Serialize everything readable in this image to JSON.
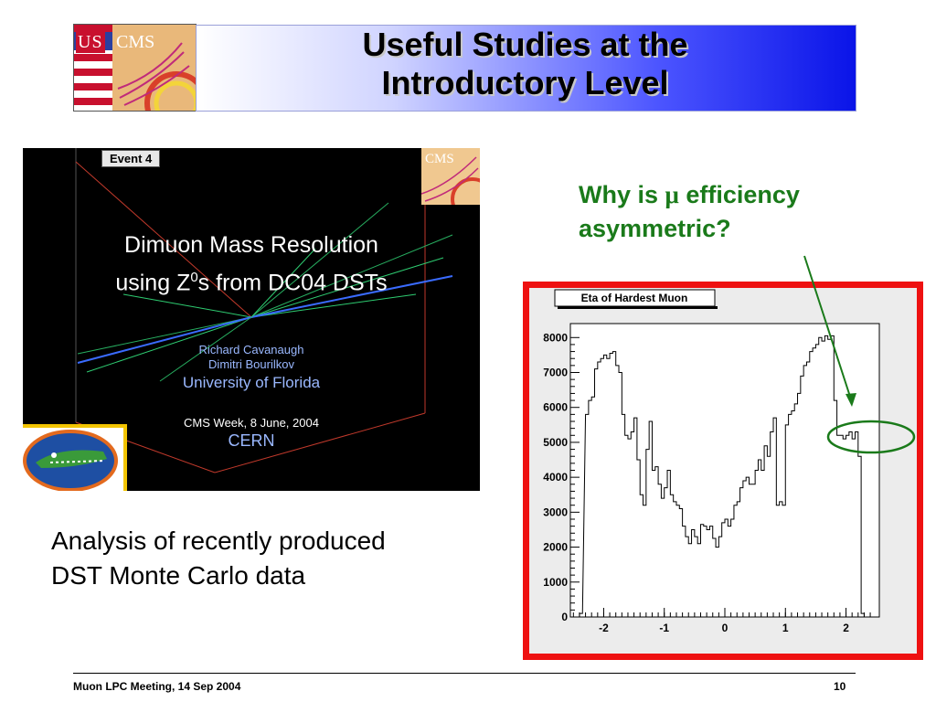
{
  "header": {
    "logo": {
      "us": "US",
      "cms": "CMS"
    },
    "title_line1": "Useful Studies at the",
    "title_line2": "Introductory Level"
  },
  "embedded_slide": {
    "event_label": "Event 4",
    "cms_logo": "CMS",
    "title_line1": "Dimuon Mass Resolution",
    "title_line2_pre": "using Z",
    "title_line2_sup": "0",
    "title_line2_post": "s from DC04 DSTs",
    "author1": "Richard Cavanaugh",
    "author2": "Dimitri Bourilkov",
    "institution": "University of Florida",
    "meeting": "CMS Week, 8 June, 2004",
    "place": "CERN",
    "colors": {
      "title": "#ffffff",
      "authors": "#9ab8ff",
      "institution": "#9ab8ff"
    }
  },
  "question": {
    "line1_pre": "Why is ",
    "symbol": "μ",
    "line1_post": " efficiency",
    "line2": "asymmetric?",
    "color": "#1a7a1a"
  },
  "description": {
    "line1": "Analysis of recently produced",
    "line2": "DST Monte Carlo data"
  },
  "footer": {
    "left": "Muon LPC Meeting, 14 Sep 2004",
    "right": "10"
  },
  "chart_data": {
    "type": "line",
    "title": "Eta of Hardest Muon",
    "xlim": [
      -2.55,
      2.55
    ],
    "ylim": [
      0,
      8400
    ],
    "x_ticks": [
      -2,
      -1,
      0,
      1,
      2
    ],
    "y_ticks": [
      0,
      1000,
      2000,
      3000,
      4000,
      5000,
      6000,
      7000,
      8000
    ],
    "x": [
      -2.4,
      -2.3,
      -2.25,
      -2.2,
      -2.15,
      -2.1,
      -2.05,
      -2.0,
      -1.95,
      -1.9,
      -1.85,
      -1.8,
      -1.75,
      -1.7,
      -1.65,
      -1.6,
      -1.55,
      -1.5,
      -1.45,
      -1.4,
      -1.35,
      -1.3,
      -1.25,
      -1.2,
      -1.15,
      -1.1,
      -1.05,
      -1.0,
      -0.95,
      -0.9,
      -0.85,
      -0.8,
      -0.75,
      -0.7,
      -0.65,
      -0.6,
      -0.55,
      -0.5,
      -0.45,
      -0.4,
      -0.35,
      -0.3,
      -0.25,
      -0.2,
      -0.15,
      -0.1,
      -0.05,
      0.0,
      0.05,
      0.1,
      0.15,
      0.2,
      0.25,
      0.3,
      0.35,
      0.4,
      0.45,
      0.5,
      0.55,
      0.6,
      0.65,
      0.7,
      0.75,
      0.8,
      0.85,
      0.9,
      0.95,
      1.0,
      1.05,
      1.1,
      1.15,
      1.2,
      1.25,
      1.3,
      1.35,
      1.4,
      1.45,
      1.5,
      1.55,
      1.6,
      1.65,
      1.7,
      1.75,
      1.8,
      1.85,
      1.9,
      1.95,
      2.0,
      2.05,
      2.1,
      2.15,
      2.2,
      2.25,
      2.3,
      2.35,
      2.4
    ],
    "values": [
      100,
      5800,
      6200,
      6300,
      7100,
      7300,
      7400,
      7500,
      7400,
      7550,
      7600,
      7200,
      7000,
      5800,
      5200,
      5100,
      5300,
      5700,
      4500,
      3500,
      3200,
      4800,
      5600,
      4200,
      4300,
      3800,
      3400,
      3700,
      4200,
      3500,
      3300,
      3200,
      3100,
      2600,
      2300,
      2100,
      2500,
      2300,
      2100,
      2650,
      2600,
      2500,
      2600,
      2250,
      2000,
      2300,
      2700,
      2800,
      2600,
      2800,
      3200,
      3300,
      3700,
      3900,
      4000,
      3800,
      3800,
      4200,
      4500,
      4200,
      4900,
      4600,
      5300,
      5700,
      3200,
      3300,
      3200,
      5500,
      5800,
      5900,
      6100,
      6400,
      6900,
      7200,
      7300,
      7600,
      7700,
      7800,
      8000,
      7900,
      8050,
      7950,
      8050,
      6200,
      5200,
      5200,
      5100,
      5200,
      5300,
      5100,
      5300,
      4600,
      100,
      0,
      0,
      0
    ],
    "grid": false,
    "annotation": "green arrow pointing to asymmetric region near eta=2.2"
  }
}
